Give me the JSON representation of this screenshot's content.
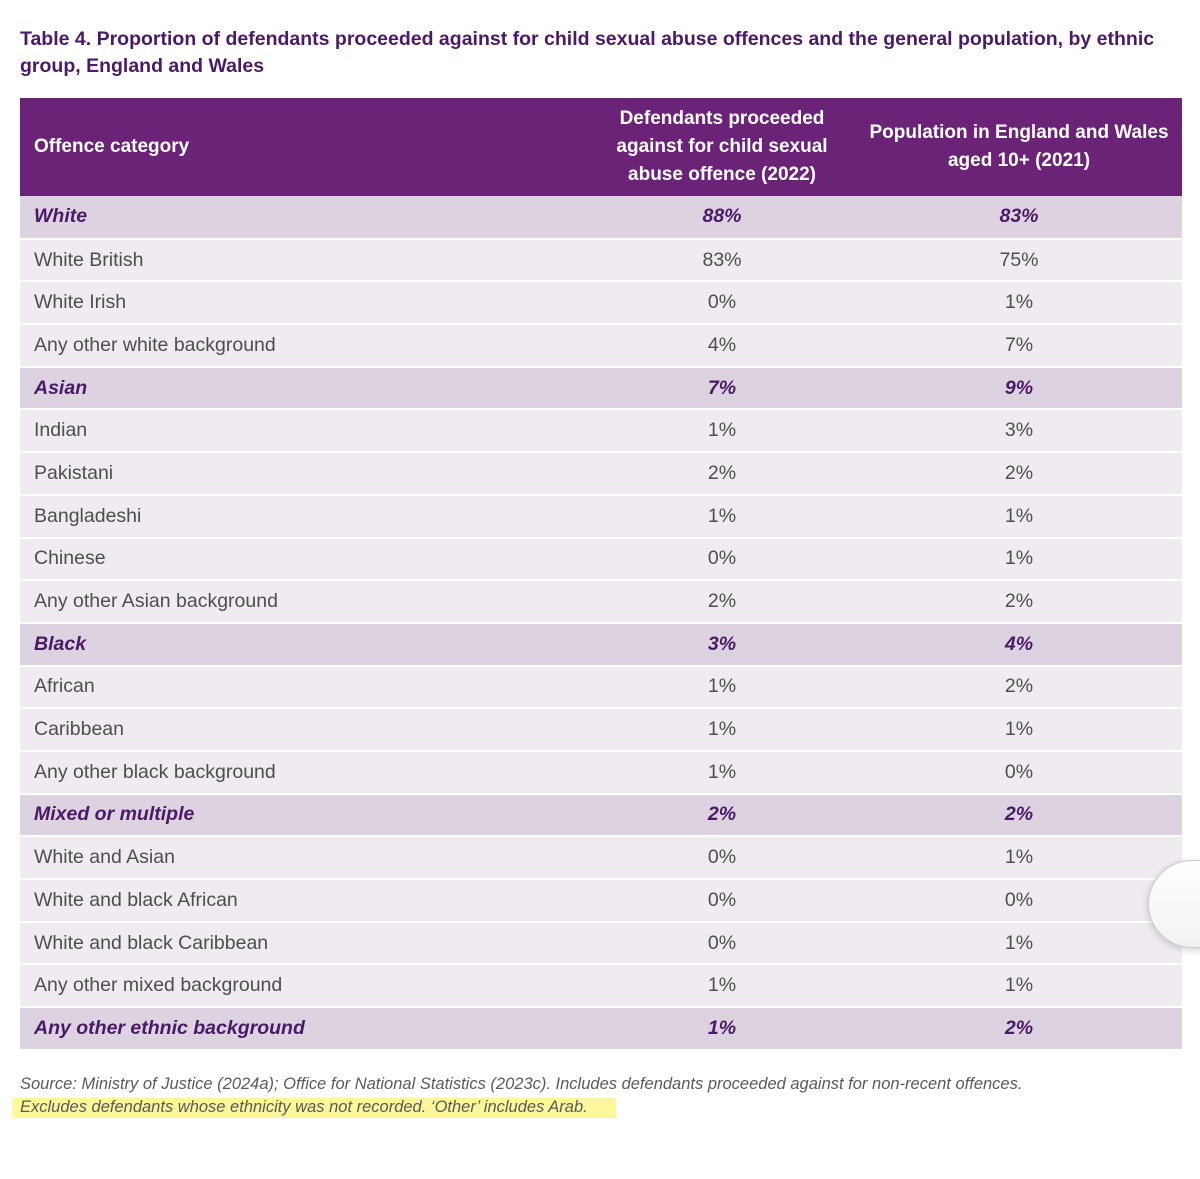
{
  "title": "Table 4. Proportion of defendants proceeded against for child sexual abuse offences and the general population, by ethnic group, England and Wales",
  "table": {
    "headers": [
      "Offence category",
      "Defendants proceeded against for child sexual abuse offence (2022)",
      "Population in England and Wales aged 10+ (2021)"
    ],
    "rows": [
      {
        "category": "White",
        "defendants": "88%",
        "population": "83%",
        "group": true
      },
      {
        "category": "White British",
        "defendants": "83%",
        "population": "75%",
        "group": false
      },
      {
        "category": "White Irish",
        "defendants": "0%",
        "population": "1%",
        "group": false
      },
      {
        "category": "Any other white background",
        "defendants": "4%",
        "population": "7%",
        "group": false
      },
      {
        "category": "Asian",
        "defendants": "7%",
        "population": "9%",
        "group": true
      },
      {
        "category": "Indian",
        "defendants": "1%",
        "population": "3%",
        "group": false
      },
      {
        "category": "Pakistani",
        "defendants": "2%",
        "population": "2%",
        "group": false
      },
      {
        "category": "Bangladeshi",
        "defendants": "1%",
        "population": "1%",
        "group": false
      },
      {
        "category": "Chinese",
        "defendants": "0%",
        "population": "1%",
        "group": false
      },
      {
        "category": "Any other Asian background",
        "defendants": "2%",
        "population": "2%",
        "group": false
      },
      {
        "category": "Black",
        "defendants": "3%",
        "population": "4%",
        "group": true
      },
      {
        "category": "African",
        "defendants": "1%",
        "population": "2%",
        "group": false
      },
      {
        "category": "Caribbean",
        "defendants": "1%",
        "population": "1%",
        "group": false
      },
      {
        "category": "Any other black background",
        "defendants": "1%",
        "population": "0%",
        "group": false
      },
      {
        "category": "Mixed or multiple",
        "defendants": "2%",
        "population": "2%",
        "group": true
      },
      {
        "category": "White and Asian",
        "defendants": "0%",
        "population": "1%",
        "group": false
      },
      {
        "category": "White and black African",
        "defendants": "0%",
        "population": "0%",
        "group": false
      },
      {
        "category": "White and black Caribbean",
        "defendants": "0%",
        "population": "1%",
        "group": false
      },
      {
        "category": "Any other mixed background",
        "defendants": "1%",
        "population": "1%",
        "group": false
      },
      {
        "category": "Any other ethnic background",
        "defendants": "1%",
        "population": "2%",
        "group": true
      }
    ]
  },
  "source": {
    "line1": "Source: Ministry of Justice (2024a); Office for National Statistics (2023c). Includes defendants proceeded against for non-recent offences.",
    "line2_highlighted": "Excludes defendants whose ethnicity was not recorded. ‘Other’ includes Arab."
  },
  "colors": {
    "header_bg": "#6a2376",
    "title_text": "#4a1a66",
    "group_row_bg": "#ddd3e0",
    "sub_row_bg": "#efebf1",
    "highlight": "#fbf79a"
  }
}
